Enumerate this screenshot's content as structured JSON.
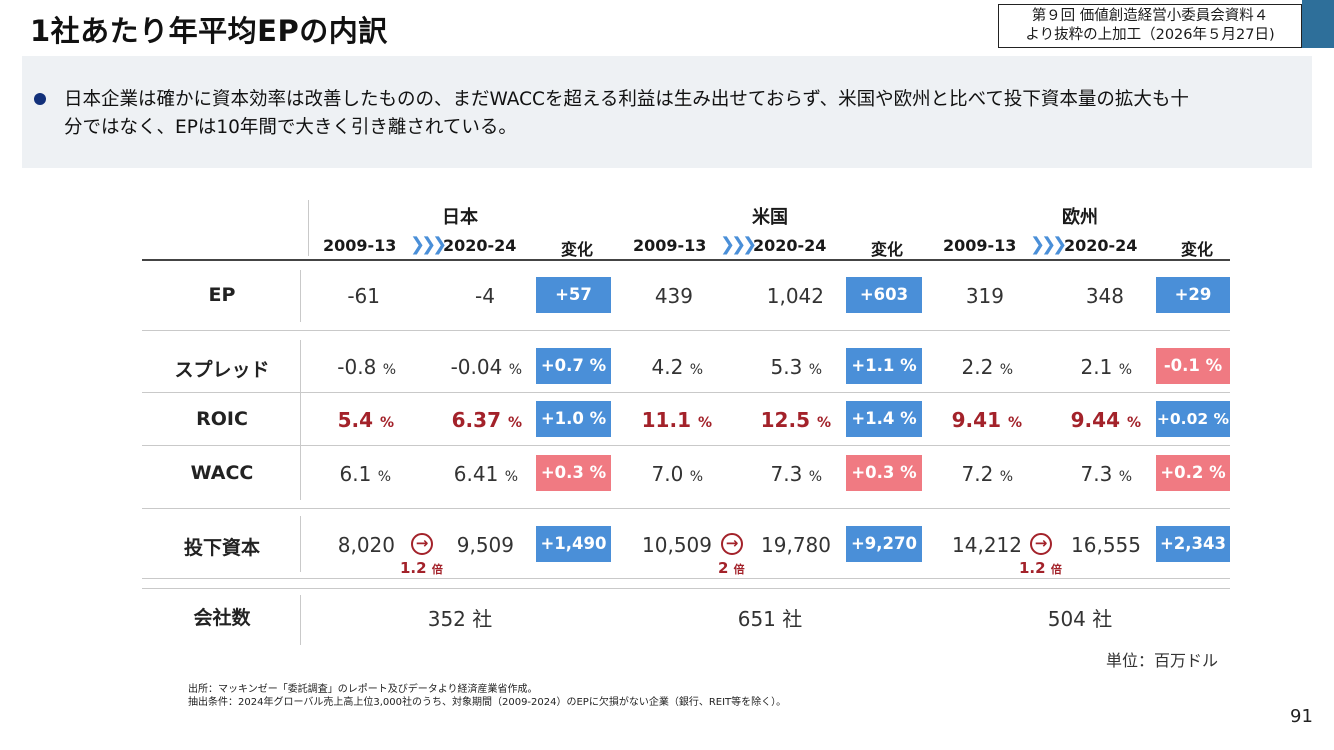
{
  "header": {
    "title": "1社あたり年平均EPの内訳",
    "source_line1": "第９回 価値創造経営小委員会資料４",
    "source_line2": "より抜粋の上加工（2026年５月27日)"
  },
  "summary": {
    "line1": "日本企業は確かに資本効率は改善したものの、まだWACCを超える利益は生み出せておらず、米国や欧州と比べて投下資本量の拡大も十",
    "line2": "分ではなく、EPは10年間で大きく引き離されている。"
  },
  "table": {
    "regions": [
      "日本",
      "米国",
      "欧州"
    ],
    "period_from": "2009-13",
    "period_to": "2020-24",
    "change_label": "変化",
    "row_labels": {
      "ep": "EP",
      "spread": "スプレッド",
      "roic": "ROIC",
      "wacc": "WACC",
      "capital": "投下資本",
      "companies": "会社数"
    },
    "percent_unit": "%",
    "japan": {
      "ep": [
        "-61",
        "-4",
        "+57"
      ],
      "spread": [
        "-0.8",
        "-0.04",
        "+0.7 %"
      ],
      "roic": [
        "5.4",
        "6.37",
        "+1.0 %"
      ],
      "wacc": [
        "6.1",
        "6.41",
        "+0.3 %"
      ],
      "capital": [
        "8,020",
        "9,509",
        "+1,490"
      ],
      "multiple": "1.2",
      "companies": "352 社"
    },
    "usa": {
      "ep": [
        "439",
        "1,042",
        "+603"
      ],
      "spread": [
        "4.2",
        "5.3",
        "+1.1 %"
      ],
      "roic": [
        "11.1",
        "12.5",
        "+1.4 %"
      ],
      "wacc": [
        "7.0",
        "7.3",
        "+0.3 %"
      ],
      "capital": [
        "10,509",
        "19,780",
        "+9,270"
      ],
      "multiple": "2",
      "companies": "651 社"
    },
    "europe": {
      "ep": [
        "319",
        "348",
        "+29"
      ],
      "spread": [
        "2.2",
        "2.1",
        "-0.1 %"
      ],
      "roic": [
        "9.41",
        "9.44",
        "+0.02 %"
      ],
      "wacc": [
        "7.2",
        "7.3",
        "+0.2 %"
      ],
      "capital": [
        "14,212",
        "16,555",
        "+2,343"
      ],
      "multiple": "1.2",
      "companies": "504 社"
    },
    "multiple_unit": "倍",
    "unit_note": "単位：百万ドル"
  },
  "colors": {
    "increase_badge": "#4a8fd8",
    "decrease_badge": "#f07a82",
    "emphasis_red": "#a3222a",
    "summary_bg": "#eef1f4"
  },
  "notes": {
    "line1": "出所：マッキンゼー「委託調査」のレポート及びデータより経済産業省作成。",
    "line2": "抽出条件：2024年グローバル売上高上位3,000社のうち、対象期間（2009-2024）のEPに欠損がない企業（銀行、REIT等を除く）。"
  },
  "page_number": "91"
}
